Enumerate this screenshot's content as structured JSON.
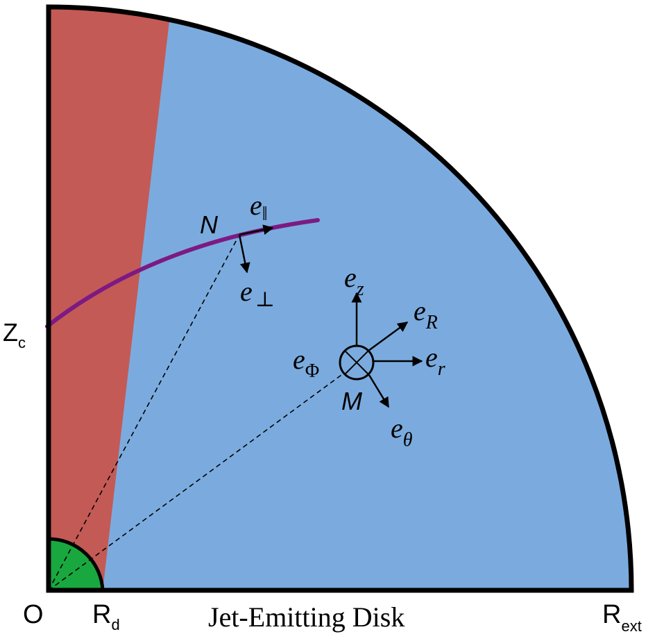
{
  "colors": {
    "jet_region": "#c45a55",
    "disk_region": "#7babde",
    "inner_region": "#19a83f",
    "field_line": "#7c1a84",
    "outline": "#000000"
  },
  "labels": {
    "origin": "O",
    "zc_main": "Z",
    "zc_sub": "c",
    "rd_main": "R",
    "rd_sub": "d",
    "rext_main": "R",
    "rext_sub": "ext",
    "disk_title": "Jet-Emitting Disk",
    "point_n": "N",
    "point_m": "M"
  },
  "vectors": {
    "e_base": "e",
    "par_sub": "‖",
    "perp_sub": "⊥",
    "z_sub": "z",
    "bigR_sub": "R",
    "r_sub": "r",
    "theta_sub": "θ",
    "phi_sub": "Φ"
  }
}
